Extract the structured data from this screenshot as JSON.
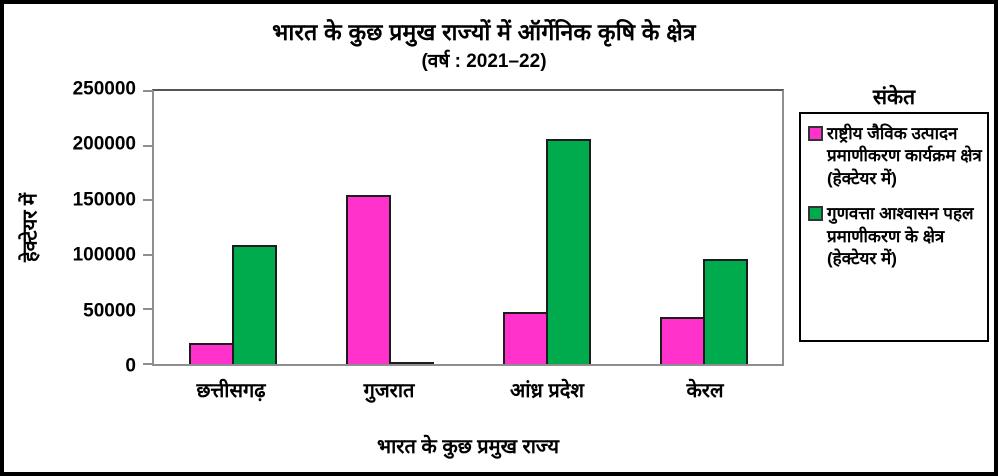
{
  "chart_data": {
    "type": "bar",
    "title": "भारत के कुछ प्रमुख राज्यों में ऑर्गेनिक कृषि के क्षेत्र",
    "subtitle": "(वर्ष : 2021–22)",
    "categories": [
      "छत्तीसगढ़",
      "गुजरात",
      "आंध्र प्रदेश",
      "केरल"
    ],
    "series": [
      {
        "name": "राष्ट्रीय जैविक उत्पादन प्रमाणीकरण कार्यक्रम क्षेत्र (हेक्टेयर में)",
        "color": "#ff33cc",
        "values": [
          19000,
          155000,
          48000,
          43000
        ]
      },
      {
        "name": "गुणवत्ता आश्वासन पहल प्रमाणीकरण के क्षेत्र (हेक्टेयर में)",
        "color": "#00ab4e",
        "values": [
          109000,
          2000,
          206000,
          96000
        ]
      }
    ],
    "xlabel": "भारत के कुछ प्रमुख राज्य",
    "ylabel": "हेक्टेयर में",
    "ylim": [
      0,
      250000
    ],
    "yticks": [
      0,
      50000,
      100000,
      150000,
      200000,
      250000
    ],
    "legend_title": "संकेत",
    "legend_position": "right",
    "grid": false,
    "bar_border_color": "#1c1c1c",
    "axis_color": "#8f8f8f"
  }
}
